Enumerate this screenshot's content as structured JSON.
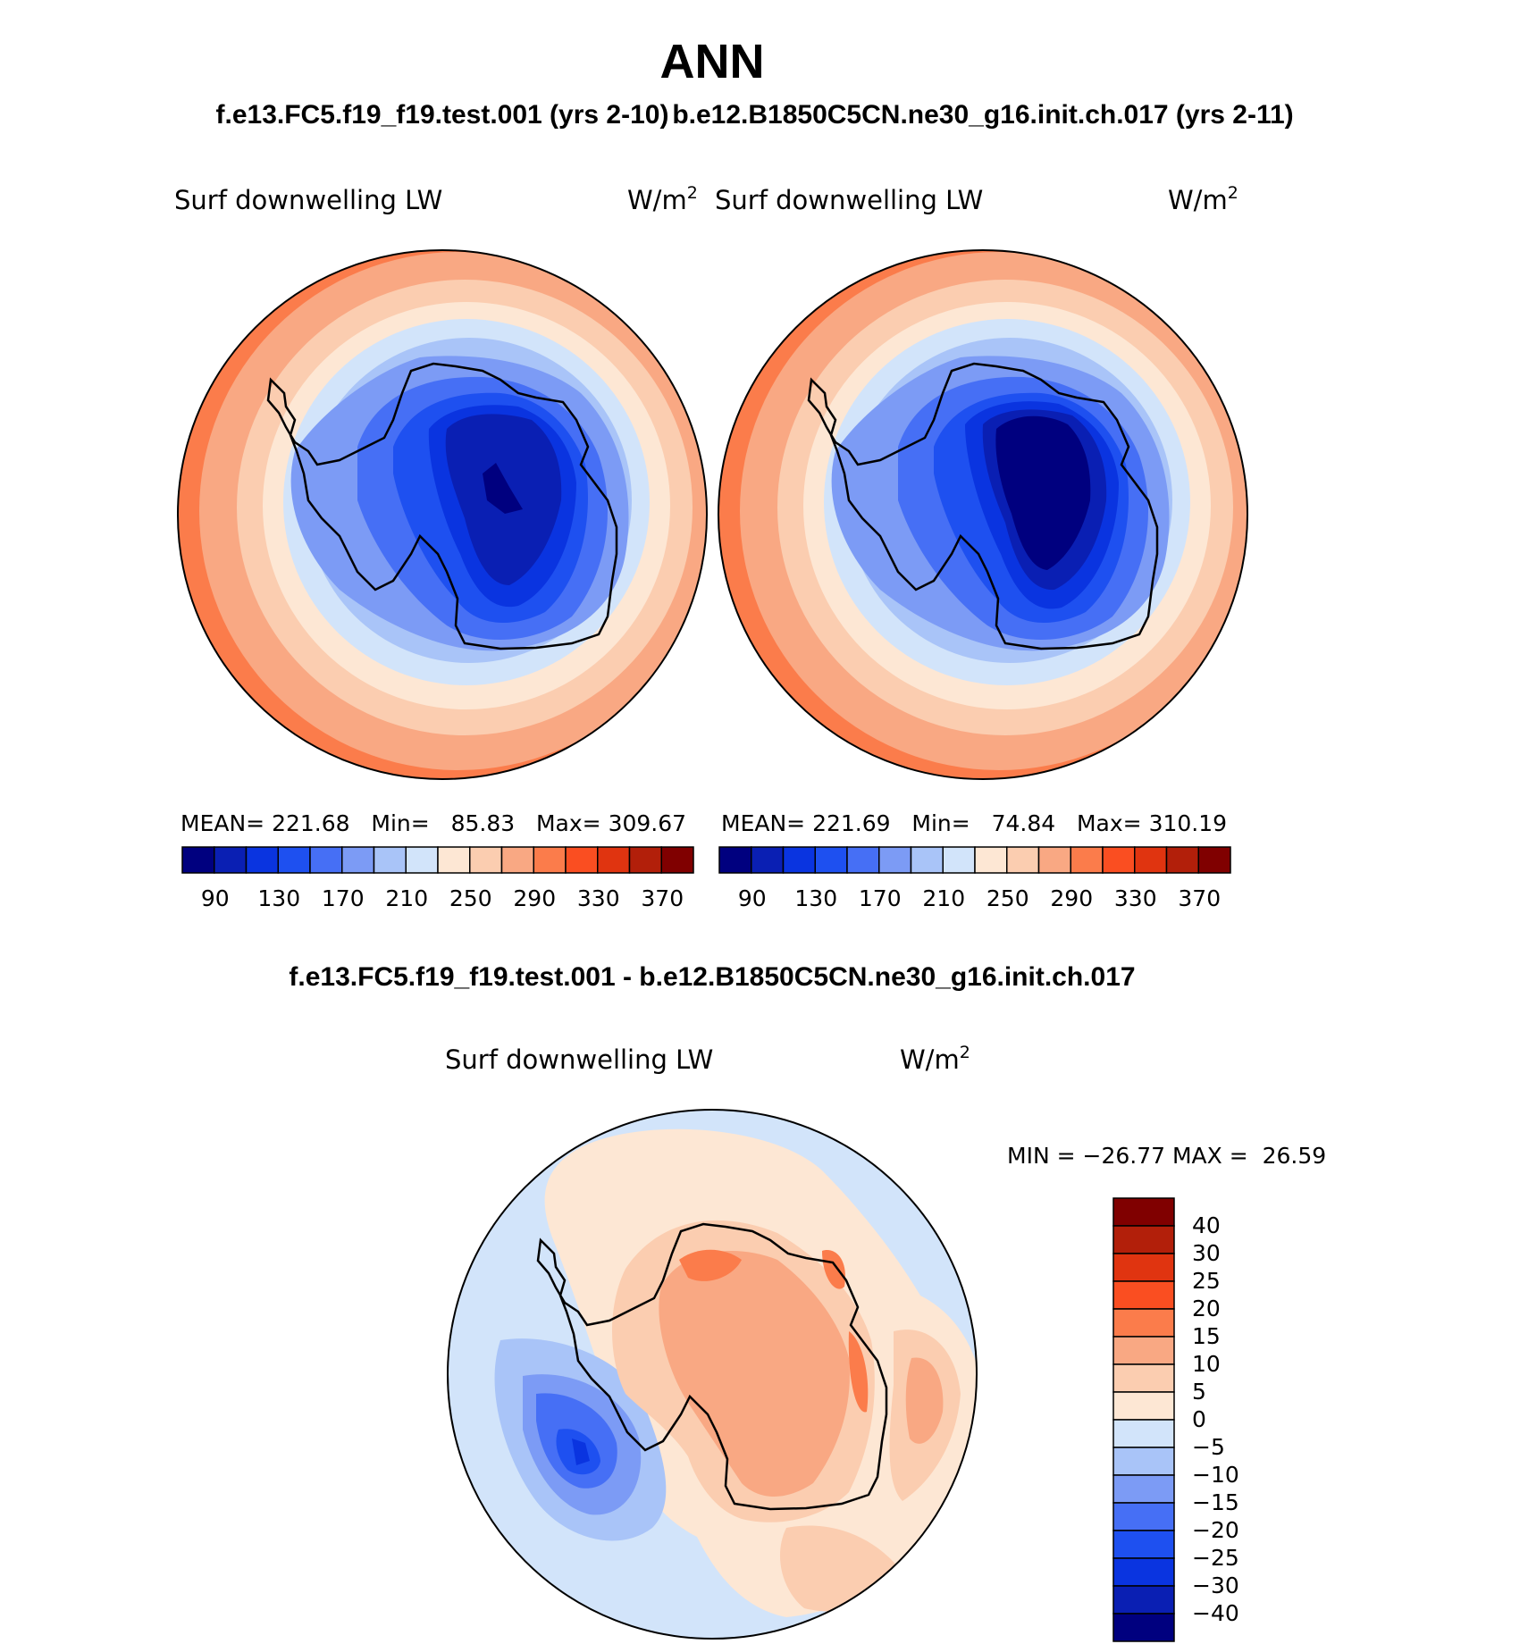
{
  "title": "ANN",
  "top_left": {
    "case_title": "f.e13.FC5.f19_f19.test.001 (yrs 2-10)",
    "variable": "Surf downwelling LW",
    "units": "W/m",
    "units_sup": "2",
    "stats": {
      "mean_label": "MEAN=",
      "mean": "221.68",
      "min_label": "Min=",
      "min": "85.83",
      "max_label": "Max=",
      "max": "309.67"
    }
  },
  "top_right": {
    "case_title": "b.e12.B1850C5CN.ne30_g16.init.ch.017 (yrs 2-11)",
    "variable": "Surf downwelling LW",
    "units": "W/m",
    "units_sup": "2",
    "stats": {
      "mean_label": "MEAN=",
      "mean": "221.69",
      "min_label": "Min=",
      "min": "74.84",
      "max_label": "Max=",
      "max": "310.19"
    }
  },
  "difference": {
    "case_title": "f.e13.FC5.f19_f19.test.001 - b.e12.B1850C5CN.ne30_g16.init.ch.017",
    "variable": "Surf downwelling LW",
    "units": "W/m",
    "units_sup": "2",
    "minmax": {
      "min_label": "MIN =",
      "min": "−26.77",
      "max_label": "MAX =",
      "max": "26.59"
    }
  },
  "colors": {
    "abs": [
      "#00007f",
      "#0a1fb3",
      "#0a34e0",
      "#1e50f0",
      "#466ff5",
      "#7c9bf5",
      "#a9c4f8",
      "#d2e4fa",
      "#fde7d4",
      "#fbcdb0",
      "#f9a883",
      "#fb7c4b",
      "#fa4e21",
      "#e03410",
      "#b21f0a",
      "#800000"
    ],
    "diff": [
      "#00007f",
      "#0a1fb3",
      "#0a34e0",
      "#1e50f0",
      "#466ff5",
      "#7c9bf5",
      "#a9c4f8",
      "#d2e4fa",
      "#fde7d4",
      "#fbcdb0",
      "#f9a883",
      "#fb7c4b",
      "#fa4e21",
      "#e03410",
      "#b21f0a",
      "#800000"
    ]
  },
  "abs_colorbar_labels": [
    "90",
    "130",
    "170",
    "210",
    "250",
    "290",
    "330",
    "370"
  ],
  "diff_colorbar_labels": [
    "40",
    "30",
    "25",
    "20",
    "15",
    "10",
    "5",
    "0",
    "−5",
    "−10",
    "−15",
    "−20",
    "−25",
    "−30",
    "−40"
  ]
}
